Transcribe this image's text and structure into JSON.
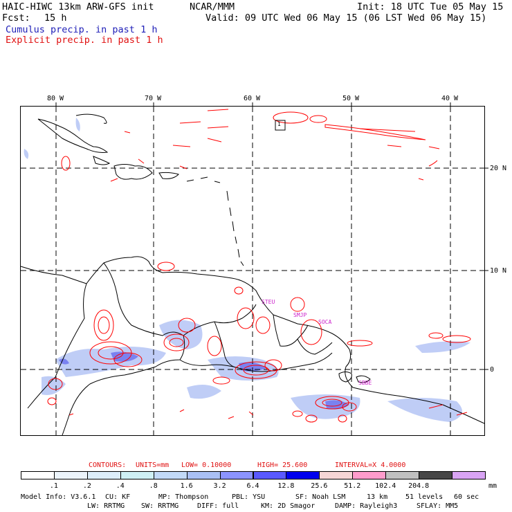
{
  "header": {
    "model": "HAIC-HIWC 13km ARW-GFS init",
    "org": "NCAR/MMM",
    "init": "Init: 18 UTC Tue 05 May 15",
    "fcst_label": "Fcst:",
    "fcst_value": "15 h",
    "valid": "Valid: 09 UTC Wed 06 May 15 (06 LST Wed 06 May 15)",
    "cumulus": "Cumulus precip. in past 1 h",
    "explicit": "Explicit precip. in past 1 h"
  },
  "map": {
    "lon_labels": [
      "80 W",
      "70 W",
      "60 W",
      "50 W",
      "40 W"
    ],
    "lat_labels": [
      "20 N",
      "10 N",
      "0"
    ],
    "stations": [
      "STEU",
      "SMJP",
      "SOCA",
      "SBBE"
    ],
    "box_label": "1",
    "colors": {
      "coast": "#000000",
      "contour": "#ff0000",
      "station": "#cc22cc",
      "frame": "#000000"
    }
  },
  "contours": {
    "label": "CONTOURS:",
    "units": "UNITS=mm",
    "low": "LOW= 0.10000",
    "high": "HIGH=  25.600",
    "interval": "INTERVAL=X  4.0000"
  },
  "colorbar": {
    "labels": [
      ".1",
      ".2",
      ".4",
      ".8",
      "1.6",
      "3.2",
      "6.4",
      "12.8",
      "25.6",
      "51.2",
      "102.4",
      "204.8"
    ],
    "unit": "mm",
    "colors": [
      "#ffffff",
      "#ecf4fb",
      "#ddeefa",
      "#cff0f5",
      "#c2d9f7",
      "#aac0f5",
      "#8c94ff",
      "#5a59ff",
      "#0000ee",
      "#f6d6d6",
      "#ff9ccc",
      "#c0c0c0",
      "#474747",
      "#d9a4f5"
    ]
  },
  "footer": {
    "line1": [
      "Model Info: V3.6.1",
      "CU: KF",
      "MP: Thompson",
      "PBL: YSU",
      "SF: Noah LSM",
      "13 km",
      "51 levels",
      "60 sec"
    ],
    "line2": [
      "LW: RRTMG",
      "SW: RRTMG",
      "DIFF: full",
      "KM: 2D Smagor",
      "DAMP: Rayleigh3",
      "SFLAY: MM5"
    ]
  }
}
